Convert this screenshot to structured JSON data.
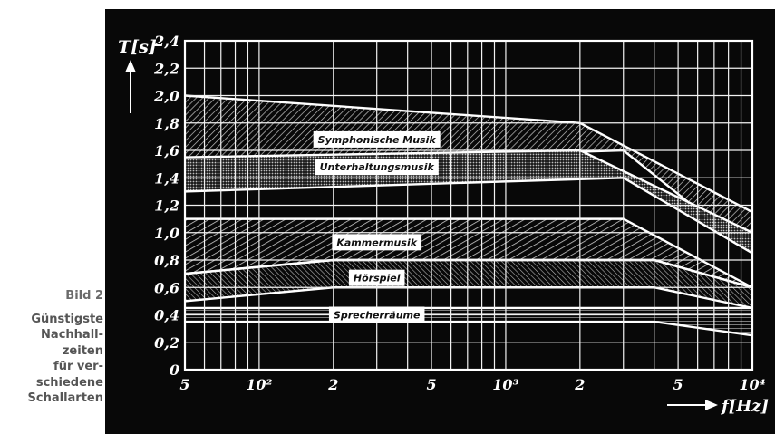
{
  "caption": {
    "title": "Bild 2",
    "lines": [
      "Günstigste",
      "Nachhall-",
      "zeiten",
      "für ver-",
      "schiedene",
      "Schallarten"
    ]
  },
  "colors": {
    "background": "#080808",
    "grid": "#ffffff",
    "band_label_bg": "#ffffff"
  },
  "chart_data": {
    "type": "area",
    "xlabel": "f[Hz]",
    "ylabel": "T[s]",
    "x_scale": "log",
    "xlim": [
      50,
      10000
    ],
    "ylim": [
      0,
      2.4
    ],
    "grid": true,
    "x_tick_labels": [
      "5",
      "10²",
      "2",
      "5",
      "10³",
      "2",
      "5",
      "10⁴"
    ],
    "x_tick_values": [
      50,
      100,
      200,
      500,
      1000,
      2000,
      5000,
      10000
    ],
    "y_tick_labels": [
      "0",
      "0,2",
      "0,4",
      "0,6",
      "0,8",
      "1,0",
      "1,2",
      "1,4",
      "1,6",
      "1,8",
      "2,0",
      "2,2",
      "2,4"
    ],
    "y_tick_values": [
      0,
      0.2,
      0.4,
      0.6,
      0.8,
      1.0,
      1.2,
      1.4,
      1.6,
      1.8,
      2.0,
      2.2,
      2.4
    ],
    "series": [
      {
        "name": "Symphonische Musik",
        "upper": {
          "x": [
            50,
            2000,
            10000
          ],
          "y": [
            2.0,
            1.8,
            1.15
          ]
        },
        "lower": {
          "x": [
            50,
            3000,
            10000
          ],
          "y": [
            1.5,
            1.6,
            0.85
          ]
        }
      },
      {
        "name": "Unterhaltungsmusik",
        "upper": {
          "x": [
            50,
            2000,
            10000
          ],
          "y": [
            1.55,
            1.6,
            1.0
          ]
        },
        "lower": {
          "x": [
            50,
            3000,
            10000
          ],
          "y": [
            1.3,
            1.4,
            0.85
          ]
        }
      },
      {
        "name": "Kammermusik",
        "upper": {
          "x": [
            50,
            3000,
            10000
          ],
          "y": [
            1.1,
            1.1,
            0.6
          ]
        },
        "lower": {
          "x": [
            50,
            200,
            4000,
            10000
          ],
          "y": [
            0.7,
            0.8,
            0.8,
            0.6
          ]
        }
      },
      {
        "name": "Hörspiel",
        "upper": {
          "x": [
            50,
            200,
            4000,
            10000
          ],
          "y": [
            0.7,
            0.8,
            0.8,
            0.6
          ]
        },
        "lower": {
          "x": [
            50,
            200,
            4000,
            10000
          ],
          "y": [
            0.5,
            0.6,
            0.6,
            0.45
          ]
        }
      },
      {
        "name": "Sprecherräume",
        "upper": {
          "x": [
            50,
            4000,
            10000
          ],
          "y": [
            0.45,
            0.45,
            0.45
          ]
        },
        "lower": {
          "x": [
            50,
            4000,
            10000
          ],
          "y": [
            0.35,
            0.35,
            0.25
          ]
        }
      }
    ]
  }
}
